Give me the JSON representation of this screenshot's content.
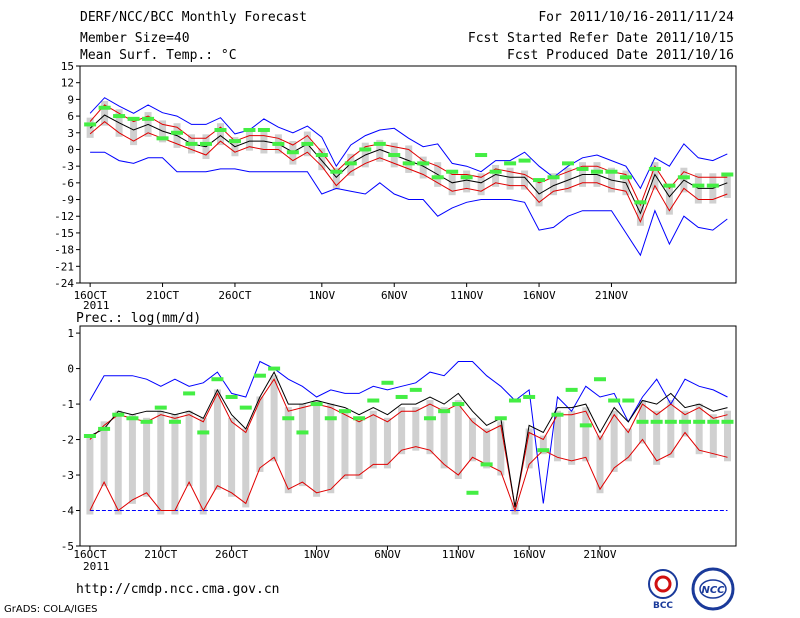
{
  "header": {
    "title": "DERF/NCC/BCC Monthly Forecast",
    "member": "Member Size=40",
    "variable": "Mean Surf. Temp.: °C",
    "period": "For 2011/10/16-2011/11/24",
    "refer": "Fcst Started Refer Date 2011/10/15",
    "produced": "Fcst Produced Date 2011/10/16"
  },
  "footer": {
    "url": "http://cmdp.ncc.cma.gov.cn",
    "grads": "GrADS: COLA/IGES",
    "logo_bcc": "BCC",
    "logo_ncc": "NCC"
  },
  "colors": {
    "max_min": "#0000ff",
    "mean": "#000000",
    "inner": "#e00000",
    "median": "#44ee44",
    "box": "#d0d0d0"
  },
  "chart_data": [
    {
      "type": "line",
      "title": "Mean Surf. Temp.: °C",
      "ylim": [
        -24,
        15
      ],
      "yticks": [
        15,
        12,
        9,
        6,
        3,
        0,
        -3,
        -6,
        -9,
        -12,
        -15,
        -18,
        -21,
        -24
      ],
      "xtick_labels": [
        "16OCT",
        "21OCT",
        "26OCT",
        "1NOV",
        "6NOV",
        "11NOV",
        "16NOV",
        "21NOV"
      ],
      "xtick_days": [
        1,
        6,
        11,
        17,
        22,
        27,
        32,
        37
      ],
      "year_label": "2011",
      "series": [
        {
          "name": "max",
          "values": [
            6.5,
            9.3,
            7.8,
            6.5,
            8,
            6.6,
            6,
            4.5,
            4.5,
            5.7,
            2.8,
            3.5,
            5.5,
            4,
            3,
            4.2,
            2.2,
            -3,
            0.8,
            2.5,
            3.5,
            3.8,
            2,
            0.5,
            1,
            -2.5,
            -3,
            -4,
            -2,
            -2,
            -0.5,
            -3,
            -5,
            -3,
            -1.5,
            -1,
            -2,
            -3,
            -7,
            -1.5,
            -3,
            1,
            -1.5,
            -2,
            -0.8
          ]
        },
        {
          "name": "upper",
          "values": [
            5,
            8,
            6.5,
            5,
            6,
            4.5,
            4,
            2,
            2,
            4,
            1.5,
            2.5,
            2.5,
            2,
            0.8,
            2.5,
            -0.5,
            -4,
            -1.5,
            0.5,
            1,
            0.5,
            0,
            -2,
            -3,
            -4.5,
            -4.5,
            -5,
            -3.5,
            -4,
            -4.5,
            -6,
            -5,
            -4,
            -3,
            -3,
            -4,
            -4.5,
            -10,
            -3,
            -7,
            -4,
            -5,
            -5,
            -5
          ]
        },
        {
          "name": "mean",
          "values": [
            3.8,
            6.2,
            4.8,
            3.5,
            4.5,
            3.3,
            2.5,
            1,
            0.5,
            2.5,
            0.5,
            1.5,
            1.5,
            1,
            -0.5,
            1,
            -2,
            -5,
            -2.5,
            -1,
            0,
            -1,
            -2,
            -3,
            -4.5,
            -6,
            -5.5,
            -6,
            -4.5,
            -5,
            -5,
            -8,
            -6.5,
            -5.5,
            -4.5,
            -4.5,
            -5.5,
            -6,
            -11.5,
            -4.5,
            -8.5,
            -5.5,
            -7,
            -7,
            -6
          ]
        },
        {
          "name": "lower",
          "values": [
            2.8,
            5,
            3,
            1.5,
            3,
            2,
            1,
            0,
            -1,
            1.5,
            -0.5,
            0.5,
            0,
            0,
            -2,
            -0.5,
            -3,
            -6.5,
            -4,
            -2.5,
            -1.5,
            -2.5,
            -3.5,
            -4.5,
            -6,
            -7.5,
            -7,
            -7.5,
            -6,
            -6.5,
            -6.5,
            -9.5,
            -7.5,
            -7,
            -6,
            -6,
            -7,
            -7.5,
            -13,
            -6.5,
            -11,
            -7,
            -9,
            -9,
            -8
          ]
        },
        {
          "name": "min",
          "values": [
            -0.5,
            -0.5,
            -2,
            -2.5,
            -1.5,
            -1.5,
            -4,
            -4,
            -4,
            -3.5,
            -3.5,
            -4,
            -4,
            -4,
            -4,
            -4,
            -8,
            -7,
            -7.5,
            -8,
            -6,
            -8,
            -9,
            -9,
            -12,
            -10.5,
            -9.5,
            -9,
            -9,
            -9,
            -9.5,
            -14.5,
            -14,
            -12,
            -11,
            -11,
            -11,
            -15,
            -19,
            -11,
            -17,
            -12,
            -14,
            -14.5,
            -12.5
          ]
        },
        {
          "name": "median",
          "values": [
            4.5,
            7.5,
            6,
            5.5,
            5.5,
            2,
            3,
            1,
            1,
            3.5,
            1.5,
            3.5,
            3.5,
            1,
            -0.5,
            1,
            -1,
            -4,
            -2.5,
            0,
            1,
            -1,
            -2.5,
            -2.5,
            -5,
            -4,
            -5,
            -1,
            -4,
            -2.5,
            -2,
            -5.5,
            -5,
            -2.5,
            -3.5,
            -4,
            -4,
            -5,
            -9.5,
            -3.5,
            -6.5,
            -5,
            -6.5,
            -6.5,
            -4.5
          ]
        }
      ]
    },
    {
      "type": "line",
      "title": "Prec.: log(mm/d)",
      "ylim": [
        -5,
        1.2
      ],
      "yticks": [
        1,
        0,
        -1,
        -2,
        -3,
        -4,
        -5
      ],
      "xtick_labels": [
        "16OCT",
        "21OCT",
        "26OCT",
        "1NOV",
        "6NOV",
        "11NOV",
        "16NOV",
        "21NOV"
      ],
      "xtick_days": [
        1,
        6,
        11,
        17,
        22,
        27,
        32,
        37
      ],
      "year_label": "2011",
      "series": [
        {
          "name": "max",
          "values": [
            -0.9,
            -0.2,
            -0.2,
            -0.2,
            -0.3,
            -0.5,
            -0.3,
            -0.5,
            -0.4,
            -0.1,
            -0.7,
            -0.8,
            0.2,
            0,
            -0.3,
            -0.5,
            -0.8,
            -0.6,
            -0.7,
            -0.7,
            -0.5,
            -0.6,
            -0.5,
            -0.4,
            -0.1,
            -0.2,
            0.2,
            0.2,
            -0.2,
            -0.5,
            -0.9,
            -0.6,
            -3.8,
            -0.8,
            -1.2,
            -0.5,
            -0.8,
            -0.7,
            -1.5,
            -0.8,
            -0.3,
            -1,
            -0.3,
            -0.5,
            -0.6,
            -0.8
          ]
        },
        {
          "name": "upper",
          "values": [
            -2,
            -1.6,
            -1.3,
            -1.4,
            -1.5,
            -1.3,
            -1.4,
            -1.3,
            -1.5,
            -0.7,
            -1.5,
            -1.8,
            -0.9,
            -0.3,
            -1.2,
            -1.1,
            -1,
            -1.1,
            -1.3,
            -1.5,
            -1.3,
            -1.5,
            -1.2,
            -1.2,
            -1,
            -1.2,
            -1,
            -1.5,
            -1.8,
            -1.6,
            -3.9,
            -1.8,
            -2,
            -1.3,
            -1.3,
            -1.2,
            -2,
            -1.3,
            -1.8,
            -1,
            -1.3,
            -1,
            -1.3,
            -1.1,
            -1.4,
            -1.3
          ]
        },
        {
          "name": "mean",
          "values": [
            -1.9,
            -1.7,
            -1.2,
            -1.3,
            -1.2,
            -1.2,
            -1.3,
            -1.2,
            -1.4,
            -0.6,
            -1.3,
            -1.7,
            -0.8,
            -0.1,
            -1,
            -1,
            -0.9,
            -1,
            -1.1,
            -1.3,
            -1.1,
            -1.3,
            -1,
            -1,
            -0.8,
            -1,
            -0.7,
            -1.2,
            -1.6,
            -1.4,
            -3.9,
            -1.6,
            -1.8,
            -1.1,
            -1.1,
            -1,
            -1.8,
            -1.1,
            -1.5,
            -0.9,
            -1,
            -0.7,
            -1.1,
            -1,
            -1.2,
            -1.1
          ]
        },
        {
          "name": "lower",
          "values": [
            -4,
            -3.2,
            -4,
            -3.7,
            -3.5,
            -4,
            -4,
            -3.2,
            -4,
            -3.3,
            -3.5,
            -3.8,
            -2.8,
            -2.5,
            -3.4,
            -3.2,
            -3.5,
            -3.4,
            -3,
            -3,
            -2.7,
            -2.7,
            -2.3,
            -2.2,
            -2.3,
            -2.7,
            -3,
            -2.5,
            -2.7,
            -2.9,
            -4,
            -2.7,
            -2.3,
            -2.5,
            -2.6,
            -2.5,
            -3.4,
            -2.8,
            -2.5,
            -2,
            -2.6,
            -2.4,
            -1.8,
            -2.3,
            -2.4,
            -2.5
          ]
        },
        {
          "name": "min",
          "values": [
            -4,
            -4,
            -4,
            -4,
            -4,
            -4,
            -4,
            -4,
            -4,
            -4,
            -4,
            -4,
            -4,
            -4,
            -4,
            -4,
            -4,
            -4,
            -4,
            -4,
            -4,
            -4,
            -4,
            -4,
            -4,
            -4,
            -4,
            -4,
            -4,
            -4,
            -4,
            -4,
            -4,
            -4,
            -4,
            -4,
            -4,
            -4,
            -4,
            -4,
            -4,
            -4,
            -4,
            -4,
            -4,
            -4
          ]
        },
        {
          "name": "median",
          "values": [
            -1.9,
            -1.7,
            -1.3,
            -1.4,
            -1.5,
            -1.1,
            -1.5,
            -0.7,
            -1.8,
            -0.3,
            -0.8,
            -1.1,
            -0.2,
            0,
            -1.4,
            -1.8,
            -1,
            -1.4,
            -1.2,
            -1.4,
            -0.9,
            -0.4,
            -0.8,
            -0.6,
            -1.4,
            -1.2,
            -1,
            -3.5,
            -2.7,
            -1.4,
            -0.9,
            -0.8,
            -2.3,
            -1.3,
            -0.6,
            -1.6,
            -0.3,
            -0.9,
            -0.9,
            -1.5,
            -1.5,
            -1.5,
            -1.5,
            -1.5,
            -1.5,
            -1.5
          ]
        }
      ]
    }
  ]
}
